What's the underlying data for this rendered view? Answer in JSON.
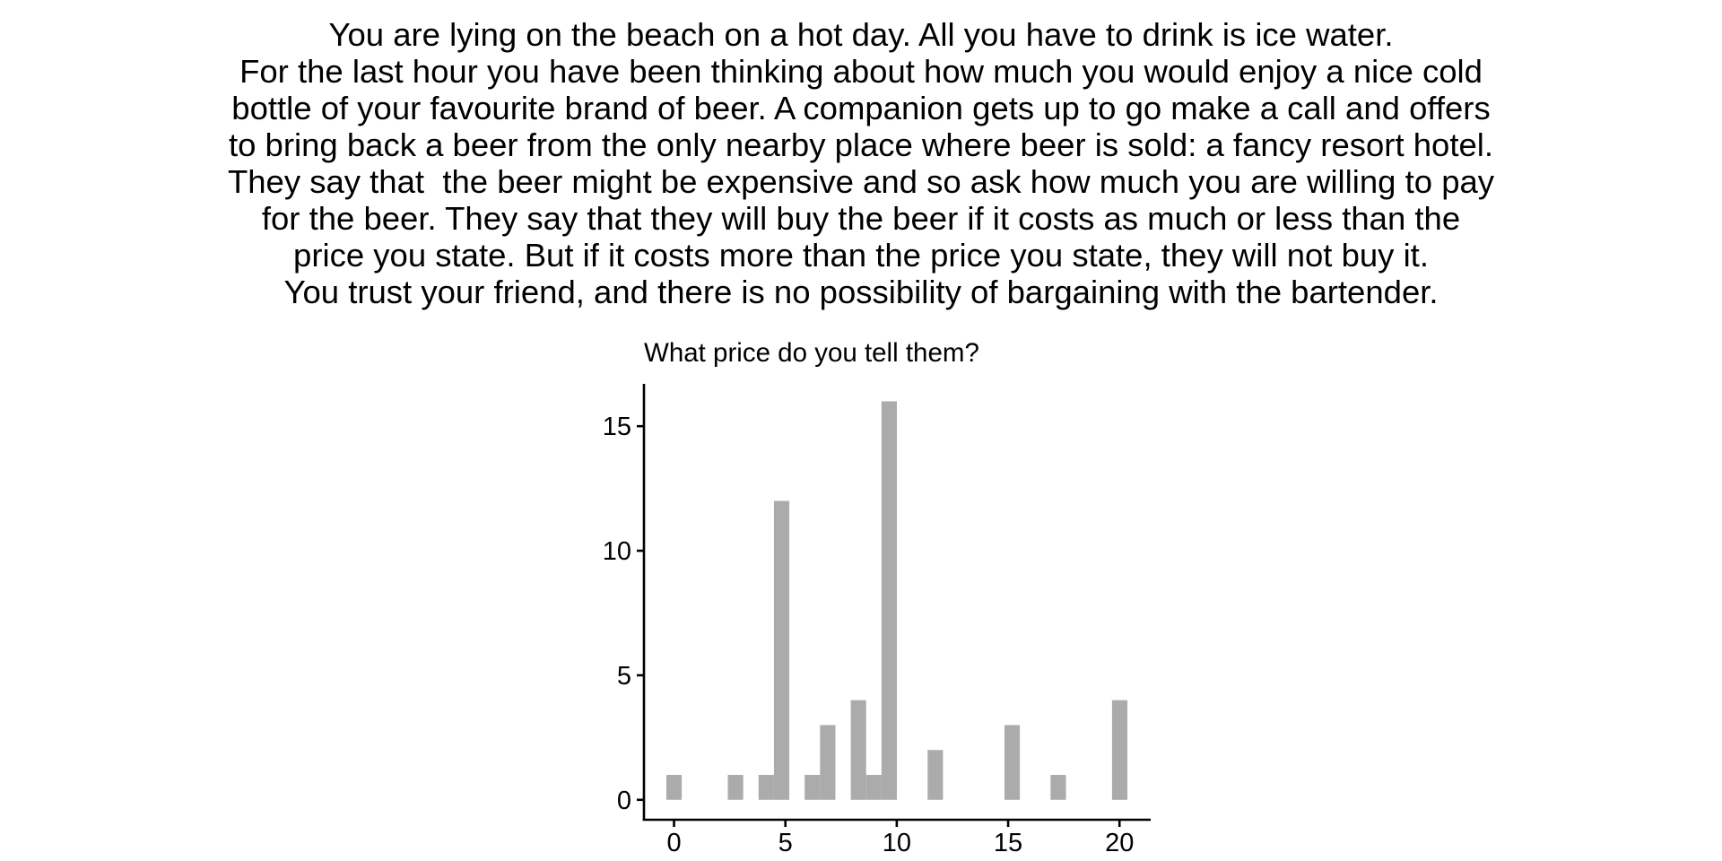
{
  "scenario": {
    "lines": [
      "You are lying on the beach on a hot day. All you have to drink is ice water.",
      "For the last hour you have been thinking about how much you would enjoy a nice cold",
      "bottle of your favourite brand of beer. A companion gets up to go make a call and offers",
      "to bring back a beer from the only nearby place where beer is sold: a fancy resort hotel.",
      "They say that  the beer might be expensive and so ask how much you are willing to pay",
      "for the beer. They say that they will buy the beer if it costs as much or less than the",
      "price you state. But if it costs more than the price you state, they will not buy it.",
      "You trust your friend, and there is no possibility of bargaining with the bartender."
    ]
  },
  "chart_data": {
    "type": "bar",
    "subtype": "histogram",
    "title": "What price do you tell them?",
    "xlabel": "",
    "ylabel": "",
    "bin_width": 0.69,
    "bins": [
      {
        "x": 0.0,
        "count": 1
      },
      {
        "x": 2.76,
        "count": 1
      },
      {
        "x": 4.14,
        "count": 1
      },
      {
        "x": 4.83,
        "count": 12
      },
      {
        "x": 6.21,
        "count": 1
      },
      {
        "x": 6.9,
        "count": 3
      },
      {
        "x": 8.28,
        "count": 4
      },
      {
        "x": 8.97,
        "count": 1
      },
      {
        "x": 9.66,
        "count": 16
      },
      {
        "x": 11.73,
        "count": 2
      },
      {
        "x": 15.18,
        "count": 3
      },
      {
        "x": 17.25,
        "count": 1
      },
      {
        "x": 20.01,
        "count": 4
      }
    ],
    "xticks": [
      0,
      5,
      10,
      15,
      20
    ],
    "yticks": [
      0,
      5,
      10,
      15
    ],
    "xlim": [
      -1.35,
      21.4
    ],
    "ylim": [
      -0.8,
      16.7
    ],
    "bar_color": "#ABABAB",
    "grid": false,
    "legend": "none"
  }
}
